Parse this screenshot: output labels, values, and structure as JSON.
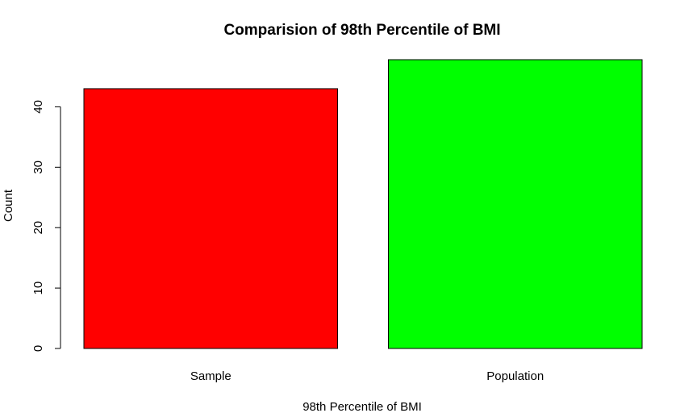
{
  "chart_data": {
    "type": "bar",
    "title": "Comparision of 98th Percentile of BMI",
    "xlabel": "98th Percentile of BMI",
    "ylabel": "Count",
    "categories": [
      "Sample",
      "Population"
    ],
    "values": [
      43,
      47.8
    ],
    "colors": [
      "#ff0000",
      "#00ff00"
    ],
    "ylim": [
      0,
      47.8
    ],
    "yticks": [
      0,
      10,
      20,
      30,
      40
    ],
    "grid": false,
    "legend": "none"
  }
}
